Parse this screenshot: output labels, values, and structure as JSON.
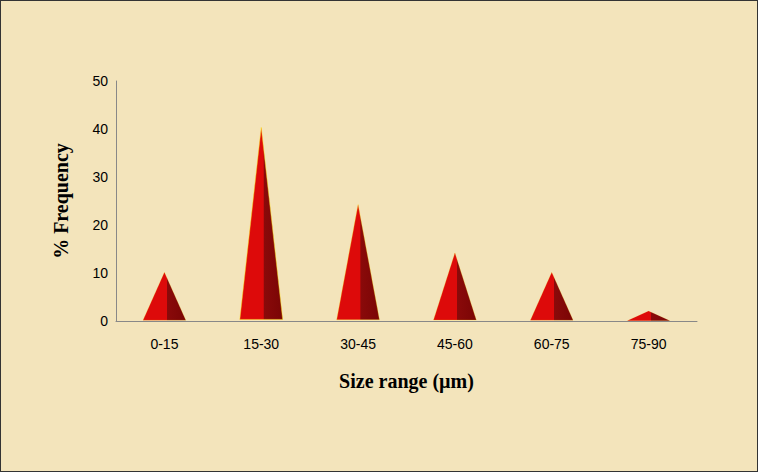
{
  "chart_data": {
    "type": "bar",
    "categories": [
      "0-15",
      "15-30",
      "30-45",
      "45-60",
      "60-75",
      "75-90"
    ],
    "values": [
      10,
      40,
      24,
      14,
      10,
      2
    ],
    "color": "#dd0a0a",
    "x_label": "Size range (µm)",
    "y_label": "% Frequency",
    "ylim": [
      0,
      50
    ],
    "yticks": [
      0,
      10,
      20,
      30,
      40,
      50
    ],
    "grid": false
  }
}
